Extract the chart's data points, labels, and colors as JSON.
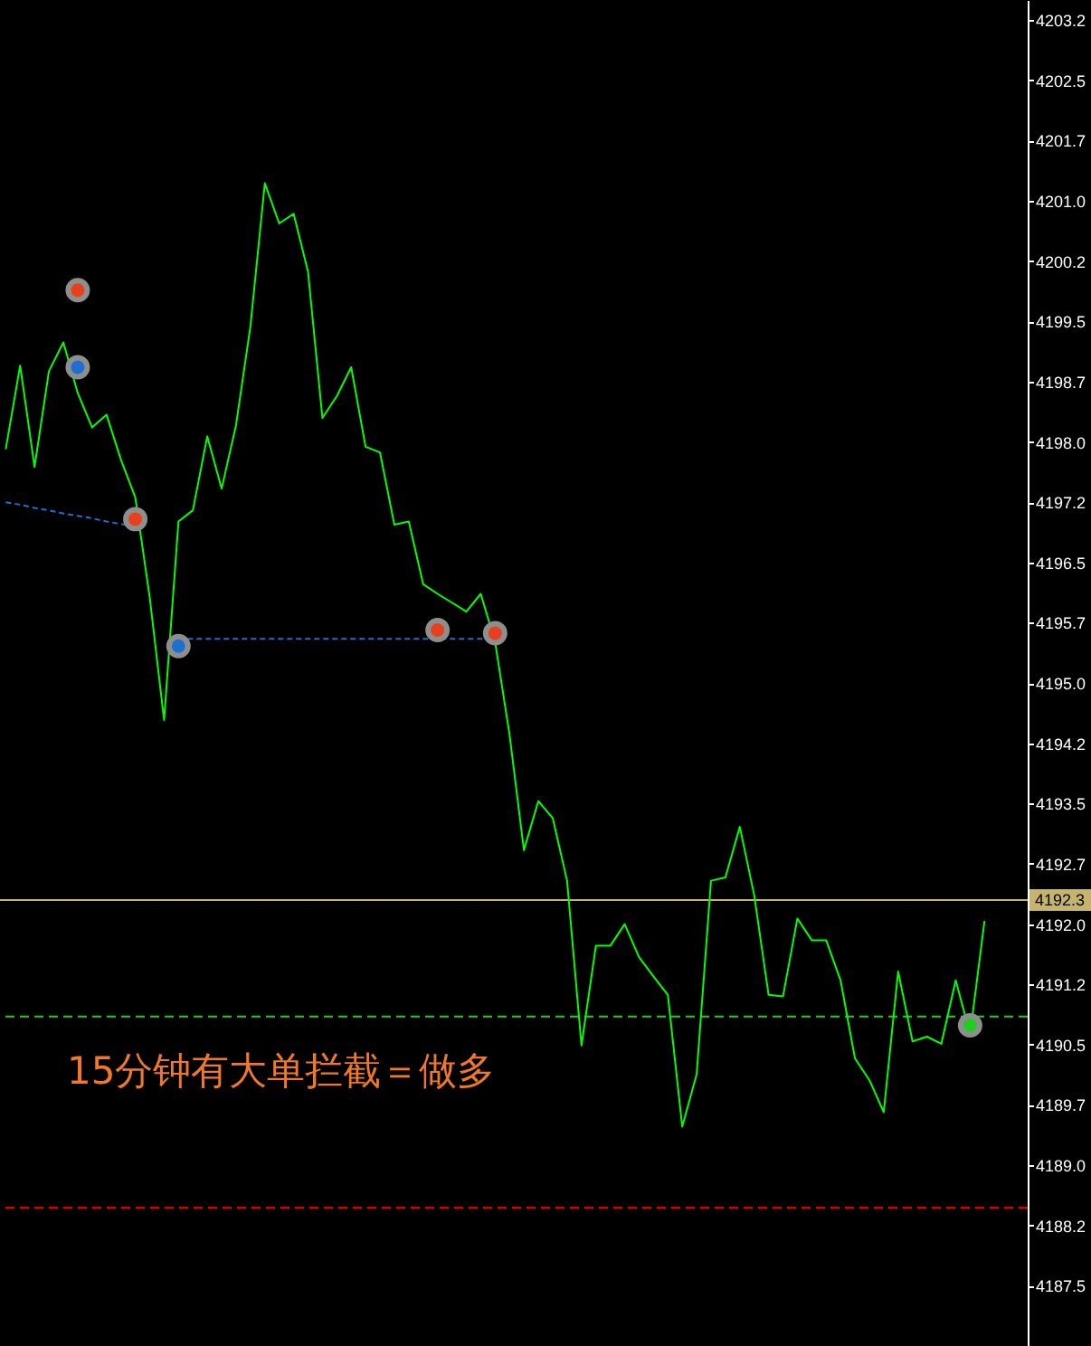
{
  "chart_data": {
    "type": "line",
    "categories": [
      null,
      null,
      null,
      null,
      null,
      null,
      null,
      null,
      null,
      null,
      null,
      null,
      null,
      null,
      null,
      null,
      null,
      null,
      null,
      null,
      null,
      null,
      null,
      null,
      null,
      null,
      null,
      null,
      null,
      null,
      null,
      null,
      null,
      null,
      null,
      null,
      null,
      null,
      null,
      null,
      null,
      null,
      null,
      null,
      null,
      null,
      null,
      null,
      null,
      null,
      null,
      null,
      null,
      null,
      null,
      null,
      null,
      null,
      null,
      null,
      null,
      null,
      null,
      null,
      null,
      null,
      null,
      null,
      null
    ],
    "series": [
      {
        "type": "line",
        "color": "#00ff00",
        "values": [
          4197.91,
          4198.95,
          4197.69,
          4198.88,
          4199.24,
          4198.61,
          4198.18,
          4198.34,
          4197.78,
          4197.31,
          4196.07,
          4194.54,
          4197.01,
          4197.15,
          4198.07,
          4197.42,
          4198.21,
          4199.44,
          4201.22,
          4200.72,
          4200.84,
          4200.12,
          4198.3,
          4198.57,
          4198.93,
          4197.94,
          4197.87,
          4196.97,
          4197.01,
          4196.23,
          4196.11,
          4196.0,
          4195.89,
          4196.11,
          4195.51,
          4194.36,
          4192.92,
          4193.53,
          4193.32,
          4192.54,
          4190.49,
          4191.73,
          4191.73,
          4192.0,
          4191.59,
          4191.35,
          4191.12,
          4189.48,
          4190.13,
          4192.54,
          4192.58,
          4193.21,
          4192.36,
          4191.12,
          4191.1,
          4192.07,
          4191.8,
          4191.8,
          4191.3,
          4190.33,
          4190.06,
          4189.66,
          4191.41,
          4190.54,
          4190.6,
          4190.51,
          4191.3,
          4190.63,
          4192.04
        ]
      },
      {
        "type": "line",
        "color": "#1f6fd0",
        "line_style": "dotted",
        "values": [
          4197.25,
          4197.22,
          4197.18,
          4197.15,
          4197.11,
          4197.08,
          4197.05,
          4197.01,
          4196.98,
          4196.94,
          null,
          null,
          null,
          null,
          null,
          null,
          null,
          null,
          null,
          null,
          null,
          null,
          null,
          null,
          null,
          null,
          null,
          null,
          null,
          null,
          null,
          null,
          null,
          null,
          null,
          null,
          null,
          null,
          null,
          null,
          null,
          null,
          null,
          null,
          null,
          null,
          null,
          null,
          null,
          null,
          null,
          null,
          null,
          null,
          null,
          null,
          null,
          null,
          null,
          null,
          null,
          null,
          null,
          null,
          null,
          null,
          null,
          null,
          null
        ]
      },
      {
        "type": "line",
        "color": "#1f6fd0",
        "line_style": "dotted",
        "values": [
          null,
          null,
          null,
          null,
          null,
          null,
          null,
          null,
          null,
          null,
          null,
          null,
          4195.55,
          4195.55,
          4195.55,
          4195.55,
          4195.55,
          4195.55,
          4195.55,
          4195.55,
          4195.55,
          4195.55,
          4195.55,
          4195.55,
          4195.55,
          4195.55,
          4195.55,
          4195.55,
          4195.55,
          4195.55,
          4195.55,
          4195.55,
          4195.55,
          4195.55,
          4195.55,
          null,
          null,
          null,
          null,
          null,
          null,
          null,
          null,
          null,
          null,
          null,
          null,
          null,
          null,
          null,
          null,
          null,
          null,
          null,
          null,
          null,
          null,
          null,
          null,
          null,
          null,
          null,
          null,
          null,
          null,
          null,
          null,
          null,
          null
        ]
      },
      {
        "type": "scatter",
        "color": "#e8401c",
        "marker": "circle",
        "values": [
          null,
          null,
          null,
          null,
          null,
          4199.89,
          null,
          null,
          null,
          4197.04,
          null,
          null,
          null,
          null,
          null,
          null,
          null,
          null,
          null,
          null,
          null,
          null,
          null,
          null,
          null,
          null,
          null,
          null,
          null,
          null,
          4195.66,
          null,
          null,
          null,
          4195.62,
          null,
          null,
          null,
          null,
          null,
          null,
          null,
          null,
          null,
          null,
          null,
          null,
          null,
          null,
          null,
          null,
          null,
          null,
          null,
          null,
          null,
          null,
          null,
          null,
          null,
          null,
          null,
          null,
          null,
          null,
          null,
          null,
          null,
          null
        ]
      },
      {
        "type": "scatter",
        "color": "#1f6fd0",
        "marker": "circle",
        "values": [
          null,
          null,
          null,
          null,
          null,
          4198.93,
          null,
          null,
          null,
          null,
          null,
          null,
          4195.46,
          null,
          null,
          null,
          null,
          null,
          null,
          null,
          null,
          null,
          null,
          null,
          null,
          null,
          null,
          null,
          null,
          null,
          null,
          null,
          null,
          null,
          null,
          null,
          null,
          null,
          null,
          null,
          null,
          null,
          null,
          null,
          null,
          null,
          null,
          null,
          null,
          null,
          null,
          null,
          null,
          null,
          null,
          null,
          null,
          null,
          null,
          null,
          null,
          null,
          null,
          null,
          null,
          null,
          null,
          null,
          null
        ]
      },
      {
        "type": "scatter",
        "color": "#22cc22",
        "marker": "circle",
        "values": [
          null,
          null,
          null,
          null,
          null,
          null,
          null,
          null,
          null,
          null,
          null,
          null,
          null,
          null,
          null,
          null,
          null,
          null,
          null,
          null,
          null,
          null,
          null,
          null,
          null,
          null,
          null,
          null,
          null,
          null,
          null,
          null,
          null,
          null,
          null,
          null,
          null,
          null,
          null,
          null,
          null,
          null,
          null,
          null,
          null,
          null,
          null,
          null,
          null,
          null,
          null,
          null,
          null,
          null,
          null,
          null,
          null,
          null,
          null,
          null,
          null,
          null,
          null,
          null,
          null,
          null,
          null,
          4190.74,
          null
        ]
      }
    ],
    "ylim": [
      4186.75,
      4203.5
    ],
    "yticks": [
      4187.5,
      {
        "value": 4188.25,
        "label": "4188.2"
      },
      {
        "value": 4189,
        "label": "4189.0"
      },
      {
        "value": 4189.75,
        "label": "4189.7"
      },
      4190.5,
      {
        "value": 4191.25,
        "label": "4191.2"
      },
      {
        "value": 4192,
        "label": "4192.0"
      },
      {
        "value": 4192.75,
        "label": "4192.7"
      },
      4193.5,
      {
        "value": 4194.25,
        "label": "4194.2"
      },
      {
        "value": 4195,
        "label": "4195.0"
      },
      {
        "value": 4195.75,
        "label": "4195.7"
      },
      4196.5,
      {
        "value": 4197.25,
        "label": "4197.2"
      },
      {
        "value": 4198,
        "label": "4198.0"
      },
      {
        "value": 4198.75,
        "label": "4198.7"
      },
      4199.5,
      {
        "value": 4200.25,
        "label": "4200.2"
      },
      {
        "value": 4201,
        "label": "4201.0"
      },
      {
        "value": 4201.75,
        "label": "4201.7"
      },
      4202.5,
      {
        "value": 4203.25,
        "label": "4203.2"
      }
    ],
    "ref_lines": [
      {
        "axis": "y",
        "value": 4192.3,
        "label": "4192.3",
        "color": "#c4b46c"
      },
      {
        "axis": "y",
        "value": 4190.85,
        "color": "#1ed01e",
        "line_style": "dashed"
      },
      {
        "axis": "y",
        "value": 4188.47,
        "color": "#ff0000",
        "line_style": "dashed"
      }
    ],
    "annotations": [
      "15分钟有大单拦截＝做多"
    ],
    "grid": false,
    "tick_labels": "y"
  }
}
